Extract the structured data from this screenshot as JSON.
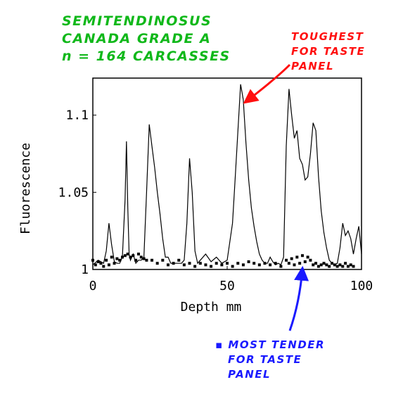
{
  "annotations": {
    "green": [
      "SEMITENDINOSUS",
      "CANADA GRADE A",
      "n = 164 CARCASSES"
    ],
    "red": [
      "TOUGHEST",
      "FOR TASTE",
      "PANEL"
    ],
    "blue": [
      "▪ MOST TENDER",
      "FOR TASTE",
      "PANEL"
    ],
    "colors": {
      "green": "#10b81a",
      "red": "#ff1010",
      "blue": "#1a1aff",
      "line": "#000000"
    }
  },
  "chart_data": {
    "type": "line",
    "xlabel": "Depth mm",
    "ylabel": "Fluorescence",
    "xlim": [
      0,
      100
    ],
    "ylim": [
      1.0,
      1.124
    ],
    "x_ticks": [
      "0",
      "50",
      "100"
    ],
    "y_ticks": [
      "1",
      "1.05",
      "1.1"
    ],
    "series": [
      {
        "style": "line",
        "x": [
          0,
          2,
          4,
          5,
          6,
          7,
          8,
          9,
          10,
          11,
          12,
          12.5,
          13,
          13.5,
          14,
          15,
          16,
          17,
          18,
          19,
          20,
          21,
          22,
          23,
          24,
          25,
          26,
          27,
          28,
          29,
          30,
          31,
          32,
          33,
          34,
          35,
          36,
          37,
          38,
          39,
          40,
          42,
          44,
          46,
          48,
          50,
          52,
          53,
          54,
          55,
          56,
          57,
          58,
          59,
          60,
          61,
          62,
          63,
          64,
          65,
          66,
          67,
          68,
          69,
          70,
          71,
          72,
          73,
          74,
          75,
          76,
          77,
          78,
          79,
          80,
          81,
          82,
          83,
          84,
          85,
          86,
          87,
          88,
          89,
          90,
          91,
          92,
          93,
          94,
          95,
          96,
          97,
          98,
          99,
          100
        ],
        "y": [
          1.003,
          1.006,
          1.004,
          1.012,
          1.03,
          1.016,
          1.005,
          1.004,
          1.004,
          1.008,
          1.045,
          1.083,
          1.04,
          1.01,
          1.006,
          1.01,
          1.004,
          1.006,
          1.006,
          1.008,
          1.05,
          1.094,
          1.08,
          1.066,
          1.05,
          1.036,
          1.02,
          1.008,
          1.008,
          1.004,
          1.004,
          1.004,
          1.004,
          1.004,
          1.006,
          1.03,
          1.072,
          1.05,
          1.012,
          1.004,
          1.006,
          1.01,
          1.005,
          1.008,
          1.004,
          1.006,
          1.03,
          1.06,
          1.09,
          1.12,
          1.11,
          1.082,
          1.058,
          1.04,
          1.028,
          1.018,
          1.01,
          1.006,
          1.004,
          1.004,
          1.008,
          1.005,
          1.003,
          1.004,
          1.003,
          1.008,
          1.08,
          1.117,
          1.1,
          1.085,
          1.09,
          1.072,
          1.068,
          1.058,
          1.06,
          1.075,
          1.095,
          1.09,
          1.06,
          1.038,
          1.024,
          1.014,
          1.006,
          1.004,
          1.003,
          1.004,
          1.014,
          1.03,
          1.022,
          1.025,
          1.02,
          1.01,
          1.02,
          1.028,
          1.01
        ]
      },
      {
        "style": "markers",
        "x": [
          0,
          1,
          2,
          3,
          4,
          5,
          6,
          7,
          8,
          9,
          10,
          11,
          12,
          13,
          14,
          15,
          16,
          17,
          18,
          19,
          20,
          22,
          24,
          26,
          28,
          30,
          32,
          34,
          36,
          38,
          40,
          42,
          44,
          46,
          48,
          50,
          52,
          54,
          56,
          58,
          60,
          62,
          64,
          66,
          68,
          70,
          72,
          73,
          74,
          75,
          76,
          77,
          78,
          79,
          80,
          81,
          82,
          83,
          84,
          85,
          86,
          87,
          88,
          89,
          90,
          91,
          92,
          93,
          94,
          95,
          96,
          97
        ],
        "y": [
          1.006,
          1.003,
          1.005,
          1.004,
          1.002,
          1.006,
          1.003,
          1.008,
          1.004,
          1.007,
          1.006,
          1.008,
          1.009,
          1.01,
          1.008,
          1.009,
          1.006,
          1.01,
          1.008,
          1.007,
          1.006,
          1.006,
          1.004,
          1.006,
          1.003,
          1.004,
          1.006,
          1.003,
          1.004,
          1.002,
          1.004,
          1.003,
          1.002,
          1.004,
          1.003,
          1.004,
          1.002,
          1.004,
          1.003,
          1.005,
          1.004,
          1.003,
          1.004,
          1.003,
          1.004,
          1.002,
          1.006,
          1.004,
          1.007,
          1.003,
          1.008,
          1.004,
          1.009,
          1.005,
          1.008,
          1.006,
          1.003,
          1.004,
          1.002,
          1.003,
          1.004,
          1.003,
          1.002,
          1.004,
          1.003,
          1.002,
          1.003,
          1.002,
          1.004,
          1.002,
          1.003,
          1.002
        ]
      }
    ]
  }
}
